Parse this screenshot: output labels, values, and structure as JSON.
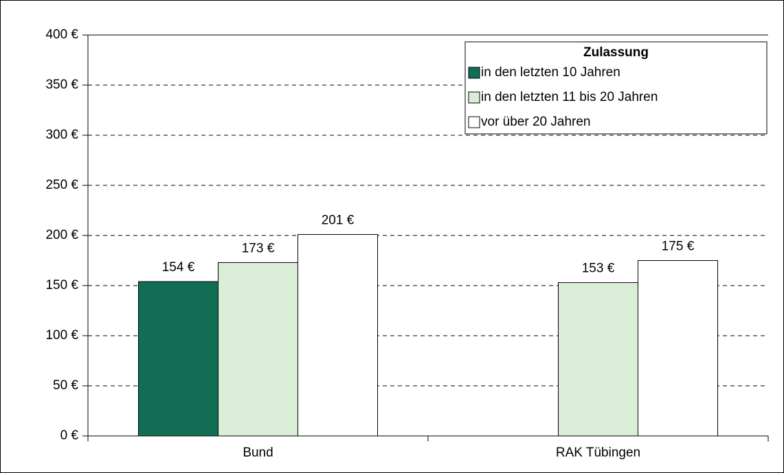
{
  "chart_data": {
    "type": "bar",
    "categories": [
      "Bund",
      "RAK Tübingen"
    ],
    "series": [
      {
        "name": "in den letzten 10 Jahren",
        "color": "#116e55",
        "values": [
          154,
          null
        ],
        "value_labels": [
          "154 €",
          null
        ]
      },
      {
        "name": "in den letzten 11 bis 20 Jahren",
        "color": "#daeed7",
        "values": [
          173,
          153
        ],
        "value_labels": [
          "173 €",
          "153 €"
        ]
      },
      {
        "name": "vor über 20 Jahren",
        "color": "#ffffff",
        "values": [
          201,
          175
        ],
        "value_labels": [
          "201 €",
          "175 €"
        ]
      }
    ],
    "legend_title": "Zulassung",
    "legend": "top-right",
    "ylim": [
      0,
      400
    ],
    "yticks": [
      {
        "value": 0,
        "label": "0 €"
      },
      {
        "value": 50,
        "label": "50 €"
      },
      {
        "value": 100,
        "label": "100 €"
      },
      {
        "value": 150,
        "label": "150 €"
      },
      {
        "value": 200,
        "label": "200 €"
      },
      {
        "value": 250,
        "label": "250 €"
      },
      {
        "value": 300,
        "label": "300 €"
      },
      {
        "value": 350,
        "label": "350 €"
      },
      {
        "value": 400,
        "label": "400 €"
      }
    ],
    "grid": true
  }
}
